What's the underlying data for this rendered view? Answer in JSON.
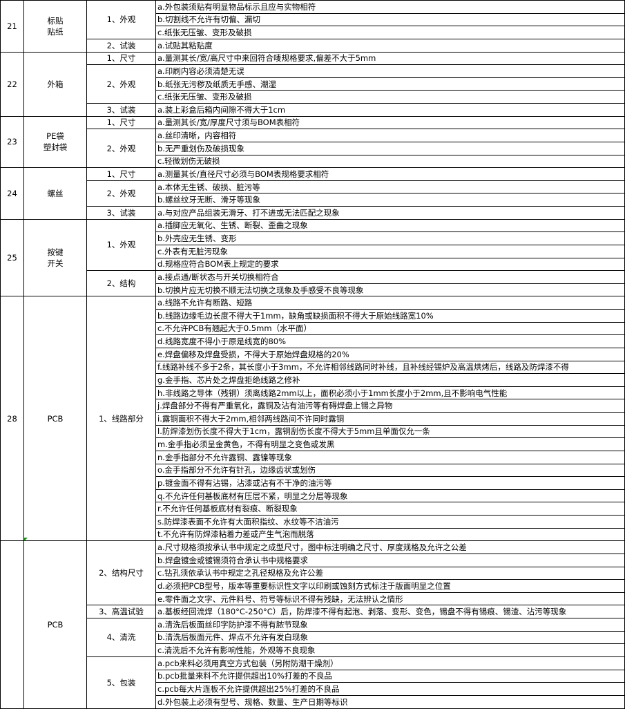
{
  "sections": [
    {
      "number": "21",
      "name": "标贴\n贴纸",
      "groups": [
        {
          "label": "1、外观",
          "items": [
            "a.外包装须贴有明显物品标示且应与实物相符",
            "b.切割线不允许有切偏、漏切",
            "c.纸张无压皱、变形及破损"
          ]
        },
        {
          "label": "2、试装",
          "items": [
            "a.试贴其粘贴度"
          ]
        }
      ]
    },
    {
      "number": "22",
      "name": "外箱",
      "groups": [
        {
          "label": "1、尺寸",
          "items": [
            "a.量测其长/宽/高尺寸中来回符合唛规格要求,偏差不大于5mm"
          ]
        },
        {
          "label": "2、外观",
          "items": [
            "a.印刷内容必须清楚无误",
            "b.纸张无污秽及纸质无手感、潮湿",
            "c.纸张无压皱、变形及破损"
          ]
        },
        {
          "label": "3、试装",
          "items": [
            "a.装上彩盒后箱内间隙不得大于1cm"
          ]
        }
      ]
    },
    {
      "number": "23",
      "name": "PE袋\n塑封袋",
      "groups": [
        {
          "label": "1、尺寸",
          "items": [
            "a.量测其长/宽/厚度尺寸须与BOM表相符"
          ]
        },
        {
          "label": "2、外观",
          "items": [
            "a.丝印清晰，内容相符",
            "b.无严重划伤及破损现象",
            "c.轻微划伤无破损"
          ]
        }
      ]
    },
    {
      "number": "24",
      "name": "螺丝",
      "groups": [
        {
          "label": "1、尺寸",
          "items": [
            "a.测量其长/直径尺寸必须与BOM表规格要求相符"
          ]
        },
        {
          "label": "2、外观",
          "items": [
            "a.本体无生锈、破损、脏污等",
            "b.螺丝纹牙无断、滑牙等现象"
          ]
        },
        {
          "label": "3、试装",
          "items": [
            "a.与对应产品组装无滑牙、打不进或无法匹配之现象"
          ]
        }
      ]
    },
    {
      "number": "25",
      "name": "按键\n开关",
      "groups": [
        {
          "label": "1、外观",
          "items": [
            "a.插脚应无氧化、生锈、断裂、歪曲之现象",
            "b.外壳应无生锈、变形",
            "c.外表有无脏污现象",
            "d.规格应符合BOM表上规定的要求"
          ]
        },
        {
          "label": "2、结构",
          "items": [
            "a.接点通/断状态与开关切换相符合",
            "b.切换片应无切换不顺无法切换之现象及手感受不良等现象"
          ]
        }
      ]
    },
    {
      "number": "28",
      "name": "PCB",
      "groups": [
        {
          "label": "1、线路部分",
          "items": [
            "a.线路不允许有断路、短路",
            "b.线路边缘毛边长度不得大于1mm，缺角或缺损面积不得大于原始线路宽10%",
            "c.不允许PCB有翘起大于0.5mm（水平面）",
            "d.线路宽度不得小于原是线宽的80%",
            "e.焊盘偏移及焊盘受损，不得大于原始焊盘规格的20%",
            "f.线路补线不多于2条，其长度小于3mm，不允许相邻线路同时补线，且补线经锡炉及高温烘烤后，线路及防焊漆不得",
            "g.金手指、芯片处之焊盘拒绝线路之修补",
            "h.非线路之导体（残铜）须离线路2mm以上，面积必须小于1mm长度小于2mm,且不影响电气性能",
            "j.焊盘部分不得有严重氧化，露铜及沾有油污等有碍焊盘上锡之异物",
            "i.露铜面积不得大于2mm,相邻两线路间不许同时露铜",
            "l.防焊漆划伤长度不得大于1cm，露铜刮伤长度不得大于5mm且单面仅允一条",
            "m.金手指必须呈金黄色，不得有明显之变色或发黑",
            "n.金手指部分不允许露铜、露镍等现象",
            "o.金手指部分不允许有针孔，边缘齿状或划伤",
            "p.镀金面不得有沾锡，沾漆或沾有不干净的油污等",
            "q.不允许任何基板底材有压层不紧，明显之分层等现象",
            "r.不允许任何基板底材有裂痕、断裂现象",
            "s.防焊漆表面不允许有大面积指纹、水纹等不洁油污",
            "t.不允许有防焊漆粘着力差或产生气泡而脱落"
          ]
        }
      ]
    },
    {
      "number": "",
      "name": "PCB",
      "groups": [
        {
          "label": "2、结构尺寸",
          "items": [
            "a.尺寸规格须按承认书中规定之成型尺寸，图中标注明确之尺寸、厚度规格及允许之公差",
            "b.焊盘镀金或镀锡须符合承认书中规格要求",
            "c.钻孔须依承认书中规定之孔径规格及允许公差",
            "d.必须把PCB型号，版本等重要标识性文字以印刷或蚀刻方式标注于版面明显之位置",
            "e.零件面之文字、元件料号、符号等标识不得有残缺，无法辨认之情形"
          ]
        },
        {
          "label": "3、高温试验",
          "items": [
            "a.基板经回流焊（180°C-250°C）后，防焊漆不得有起泡、剥落、变形、变色，锡盘不得有锡痕、锡渣、沾污等现象"
          ]
        },
        {
          "label": "4、清洗",
          "items": [
            "a.清洗后板面丝印字防护漆不得有脓节现象",
            "b.清洗后板面元件、焊点不允许有发白现象",
            "c.清洗后不允许有影响性能，外观等不良现象"
          ]
        },
        {
          "label": "5、包装",
          "items": [
            "a.pcb来料必须用真空方式包装（另附防潮干燥剂）",
            "b.pcb批量来料不允许提供超出10%打差的不良品",
            "c.pcb每大片连板不允许提供超出25%打差的不良品",
            "d.外包装上必须有型号、规格、数量、生产日期等标识"
          ]
        }
      ]
    }
  ]
}
